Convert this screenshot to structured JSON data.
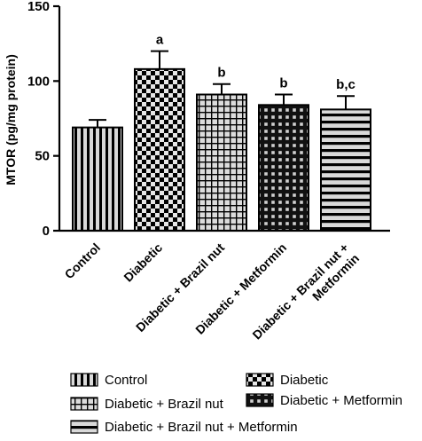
{
  "chart_data": {
    "type": "bar",
    "ylabel": "MTOR (pg/mg protein)",
    "xlabel": "",
    "ylim": [
      0,
      150
    ],
    "yticks": [
      0,
      50,
      100,
      150
    ],
    "categories": [
      "Control",
      "Diabetic",
      "Diabetic + Brazil nut",
      "Diabetic + Metformin",
      "Diabetic + Brazil nut + Metformin"
    ],
    "category_labels": [
      [
        "Control"
      ],
      [
        "Diabetic"
      ],
      [
        "Diabetic + Brazil nut"
      ],
      [
        "Diabetic + Metformin"
      ],
      [
        "Diabetic + Brazil nut +",
        "Metformin"
      ]
    ],
    "values": [
      69,
      108,
      91,
      84,
      81
    ],
    "errors": [
      5,
      12,
      7,
      7,
      9
    ],
    "significance": [
      "",
      "a",
      "b",
      "b",
      "b,c"
    ],
    "legend": {
      "entries": [
        "Control",
        "Diabetic",
        "Diabetic + Brazil nut",
        "Diabetic + Metformin",
        "Diabetic + Brazil nut + Metformin"
      ],
      "placement": "bottom"
    },
    "patterns": [
      "vertical-stripes",
      "checkerboard",
      "grid",
      "dense-grid",
      "horizontal-stripes"
    ],
    "colors": {
      "bar_stroke": "#000000",
      "axis": "#000000",
      "fill_light": "#d9d9d9",
      "fill_dark": "#1a1a1a"
    },
    "grid": false
  }
}
